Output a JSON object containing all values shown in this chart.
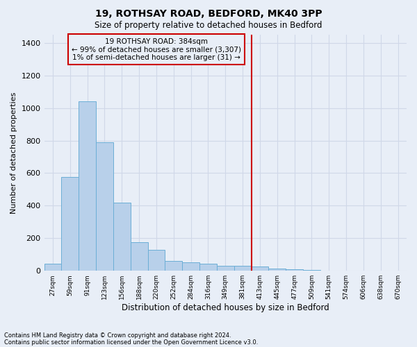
{
  "title": "19, ROTHSAY ROAD, BEDFORD, MK40 3PP",
  "subtitle": "Size of property relative to detached houses in Bedford",
  "xlabel": "Distribution of detached houses by size in Bedford",
  "ylabel": "Number of detached properties",
  "footnote1": "Contains HM Land Registry data © Crown copyright and database right 2024.",
  "footnote2": "Contains public sector information licensed under the Open Government Licence v3.0.",
  "annotation_title": "19 ROTHSAY ROAD: 384sqm",
  "annotation_line1": "← 99% of detached houses are smaller (3,307)",
  "annotation_line2": "1% of semi-detached houses are larger (31) →",
  "bar_labels": [
    "27sqm",
    "59sqm",
    "91sqm",
    "123sqm",
    "156sqm",
    "188sqm",
    "220sqm",
    "252sqm",
    "284sqm",
    "316sqm",
    "349sqm",
    "381sqm",
    "413sqm",
    "445sqm",
    "477sqm",
    "509sqm",
    "541sqm",
    "574sqm",
    "606sqm",
    "638sqm",
    "670sqm"
  ],
  "bar_values": [
    45,
    575,
    1040,
    790,
    420,
    175,
    130,
    60,
    50,
    45,
    30,
    30,
    25,
    15,
    10,
    5,
    0,
    0,
    0,
    0,
    0
  ],
  "bar_color": "#b8d0ea",
  "bar_edge_color": "#6baed6",
  "vline_x_index": 11,
  "vline_color": "#cc0000",
  "annotation_box_color": "#cc0000",
  "bg_color": "#e8eef7",
  "grid_color": "#d0d8e8",
  "ylim": [
    0,
    1450
  ],
  "yticks": [
    0,
    200,
    400,
    600,
    800,
    1000,
    1200,
    1400
  ]
}
